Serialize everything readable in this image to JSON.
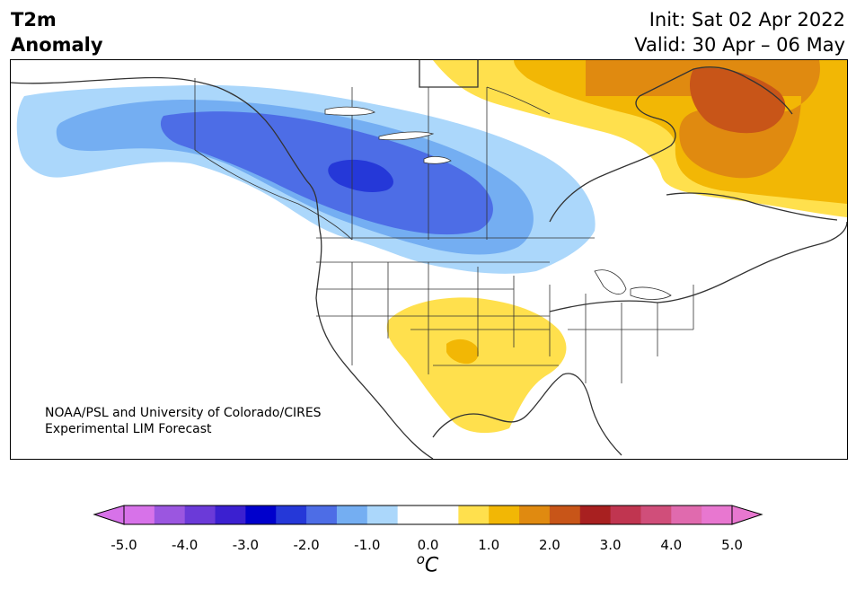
{
  "title": {
    "left_line1": "T2m",
    "left_line2": "Anomaly",
    "init": "Init: Sat 02 Apr 2022",
    "valid": "Valid: 30 Apr – 06 May"
  },
  "credit": {
    "line1": "NOAA/PSL and University of Colorado/CIRES",
    "line2": "Experimental LIM Forecast"
  },
  "colorbar": {
    "unit_base": "C",
    "unit_sup": "o",
    "tick_labels": [
      "-5.0",
      "-4.0",
      "-3.0",
      "-2.0",
      "-1.0",
      "0.0",
      "1.0",
      "2.0",
      "3.0",
      "4.0",
      "5.0"
    ],
    "colors": [
      "#d772e9",
      "#9b56e0",
      "#6b3ad8",
      "#3b20d0",
      "#0000cc",
      "#2538d8",
      "#4d6de6",
      "#74aef2",
      "#abd7fb",
      "#ffffff",
      "#ffffff",
      "#ffe04d",
      "#f2b705",
      "#e08a10",
      "#c85518",
      "#a82020",
      "#c03550",
      "#d04e7a",
      "#e06aae",
      "#e877d0"
    ],
    "under_color": "#d772e9",
    "over_color": "#e877d0"
  },
  "anomaly_colors": {
    "cold_1": "#abd7fb",
    "cold_2": "#74aef2",
    "cold_3": "#4d6de6",
    "cold_4": "#2538d8",
    "warm_1": "#ffe04d",
    "warm_2": "#f2b705",
    "warm_3": "#e08a10",
    "warm_4": "#c85518"
  }
}
